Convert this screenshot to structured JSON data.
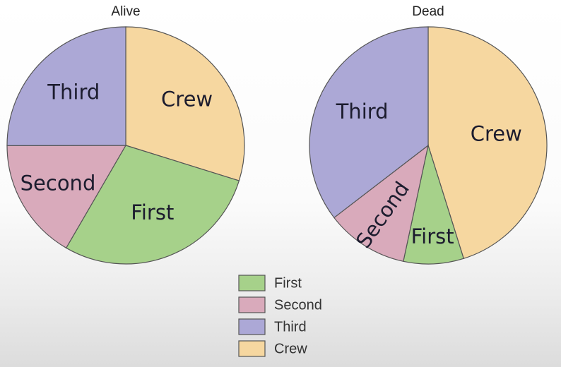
{
  "chart_data": {
    "type": "pie",
    "charts": [
      {
        "title": "Alive",
        "slices": [
          {
            "label": "Crew",
            "value": 212
          },
          {
            "label": "First",
            "value": 203
          },
          {
            "label": "Second",
            "value": 118
          },
          {
            "label": "Third",
            "value": 178
          }
        ]
      },
      {
        "title": "Dead",
        "slices": [
          {
            "label": "Crew",
            "value": 673
          },
          {
            "label": "First",
            "value": 122
          },
          {
            "label": "Second",
            "value": 167
          },
          {
            "label": "Third",
            "value": 528
          }
        ]
      }
    ],
    "legend": {
      "placement": "bottom-center",
      "entries": [
        "First",
        "Second",
        "Third",
        "Crew"
      ]
    },
    "colors": {
      "First": "#a6d18a",
      "Second": "#d9aabb",
      "Third": "#aca8d6",
      "Crew": "#f6d7a0"
    }
  }
}
